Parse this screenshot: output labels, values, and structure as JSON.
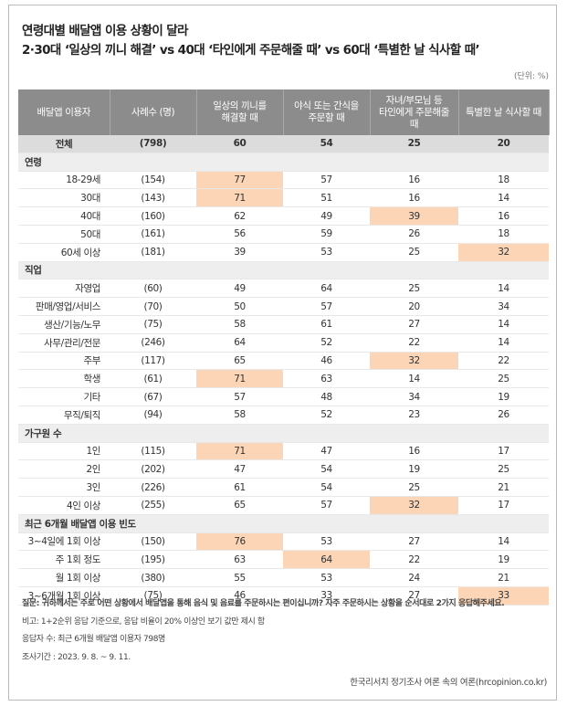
{
  "title": [
    "연령대별 배달앱 이용 상황이 달라",
    "2·30대 ‘일상의 끼니 해결’ vs 40대 ‘타인에게 주문해줄 때’ vs 60대 ‘특별한 날 식사할 때’"
  ],
  "unit": "(단위: %)",
  "table": {
    "highlight_color": "#fbd5b5",
    "header": [
      [
        "배달앱 이용자"
      ],
      [
        "사례수 (명)"
      ],
      [
        "일상의 끼니를",
        "해결할 때"
      ],
      [
        "야식 또는 간식을",
        "주문할 때"
      ],
      [
        "자녀/부모님 등",
        "타인에게 주문해줄",
        "때"
      ],
      [
        "특별한 날 식사할 때"
      ]
    ],
    "total": [
      "전체",
      "(798)",
      "60",
      "54",
      "25",
      "20"
    ],
    "groups": [
      {
        "label": "연령",
        "highlights": [
          [
            0,
            2
          ],
          [
            1,
            2
          ],
          [
            2,
            4
          ],
          [
            4,
            5
          ]
        ],
        "rows": [
          [
            "18-29세",
            "(154)",
            "77",
            "57",
            "16",
            "18"
          ],
          [
            "30대",
            "(143)",
            "71",
            "51",
            "16",
            "14"
          ],
          [
            "40대",
            "(160)",
            "62",
            "49",
            "39",
            "16"
          ],
          [
            "50대",
            "(161)",
            "56",
            "59",
            "26",
            "18"
          ],
          [
            "60세 이상",
            "(181)",
            "39",
            "53",
            "25",
            "32"
          ]
        ]
      },
      {
        "label": "직업",
        "highlights": [
          [
            4,
            4
          ],
          [
            5,
            2
          ]
        ],
        "rows": [
          [
            "자영업",
            "(60)",
            "49",
            "64",
            "25",
            "14"
          ],
          [
            "판매/영업/서비스",
            "(70)",
            "50",
            "57",
            "20",
            "34"
          ],
          [
            "생산/기능/노무",
            "(75)",
            "58",
            "61",
            "27",
            "14"
          ],
          [
            "사무/관리/전문",
            "(246)",
            "64",
            "52",
            "22",
            "14"
          ],
          [
            "주부",
            "(117)",
            "65",
            "46",
            "32",
            "22"
          ],
          [
            "학생",
            "(61)",
            "71",
            "63",
            "14",
            "25"
          ],
          [
            "기타",
            "(67)",
            "57",
            "48",
            "34",
            "19"
          ],
          [
            "무직/퇴직",
            "(94)",
            "58",
            "52",
            "23",
            "26"
          ]
        ]
      },
      {
        "label": "가구원 수",
        "highlights": [
          [
            0,
            2
          ],
          [
            3,
            4
          ]
        ],
        "rows": [
          [
            "1인",
            "(115)",
            "71",
            "47",
            "16",
            "17"
          ],
          [
            "2인",
            "(202)",
            "47",
            "54",
            "19",
            "25"
          ],
          [
            "3인",
            "(226)",
            "61",
            "54",
            "25",
            "21"
          ],
          [
            "4인 이상",
            "(255)",
            "65",
            "57",
            "32",
            "17"
          ]
        ]
      },
      {
        "label": "최근 6개월 배달앱 이용 빈도",
        "highlights": [
          [
            0,
            2
          ],
          [
            1,
            3
          ],
          [
            3,
            5
          ]
        ],
        "rows": [
          [
            "3~4일에 1회 이상",
            "(150)",
            "76",
            "53",
            "27",
            "14"
          ],
          [
            "주 1회 정도",
            "(195)",
            "63",
            "64",
            "22",
            "19"
          ],
          [
            "월 1회 이상",
            "(380)",
            "55",
            "53",
            "24",
            "21"
          ],
          [
            "3~6개월 1회 이상",
            "(75)",
            "46",
            "33",
            "27",
            "33"
          ]
        ]
      }
    ]
  },
  "notes": [
    "질문: 귀하께서는 주로 어떤 상황에서 배달앱을 통해 음식 및 음료를 주문하시는 편이십니까? 자주 주문하시는 상황을 순서대로 2가지 응답해주세요.",
    "비고: 1+2순위 응답 기준으로, 응답 비율이 20% 이상인 보기 값만 제시 함",
    "응답자 수: 최근 6개월 배달앱 이용자 798명",
    "조사기간 : 2023. 9. 8. ~ 9. 11."
  ],
  "source": "한국리서치 정기조사 여론 속의 여론(hrcopinion.co.kr)"
}
